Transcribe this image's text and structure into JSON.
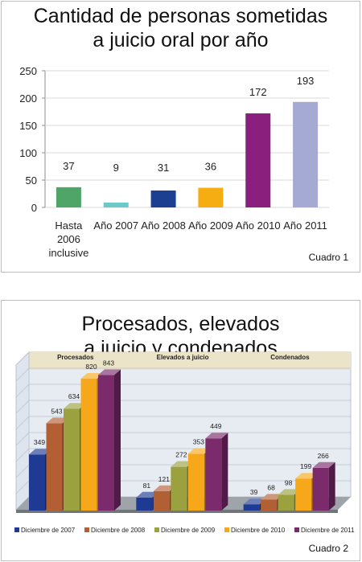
{
  "chart_data": [
    {
      "type": "bar",
      "title_lines": [
        "Cantidad de personas sometidas",
        "a juicio oral por año"
      ],
      "caption": "Cuadro 1",
      "categories": [
        [
          "Hasta",
          "2006",
          "inclusive"
        ],
        [
          "Año 2007"
        ],
        [
          "Año 2008"
        ],
        [
          "Año 2009"
        ],
        [
          "Año 2010"
        ],
        [
          "Año 2011"
        ]
      ],
      "values": [
        37,
        9,
        31,
        36,
        172,
        193
      ],
      "colors": [
        "#4ea567",
        "#6cc9c9",
        "#1d3f91",
        "#f6ad12",
        "#8a1f7d",
        "#a4aad4"
      ],
      "yticks": [
        0,
        50,
        100,
        150,
        200,
        250
      ],
      "ylim": [
        0,
        250
      ],
      "grid": true
    },
    {
      "type": "bar",
      "variant": "3d-grouped",
      "title_lines": [
        "Procesados, elevados",
        "a juicio y condenados"
      ],
      "caption": "Cuadro 2",
      "categories": [
        "Procesados",
        "Elevados a juicio",
        "Condenados"
      ],
      "series": [
        {
          "name": "Diciembre de 2007",
          "color": "#1f3a93",
          "values": [
            349,
            81,
            39
          ]
        },
        {
          "name": "Diciembre de 2008",
          "color": "#b35f34",
          "values": [
            543,
            121,
            68
          ]
        },
        {
          "name": "Diciembre de 2009",
          "color": "#9aa13e",
          "values": [
            634,
            272,
            98
          ]
        },
        {
          "name": "Diciembre de 2010",
          "color": "#f6a81a",
          "values": [
            820,
            353,
            199
          ]
        },
        {
          "name": "Diciembre de 2011",
          "color": "#7b2a6b",
          "values": [
            843,
            449,
            266
          ]
        }
      ],
      "ylim": [
        0,
        900
      ],
      "legend": "bottom",
      "grid": true
    }
  ]
}
